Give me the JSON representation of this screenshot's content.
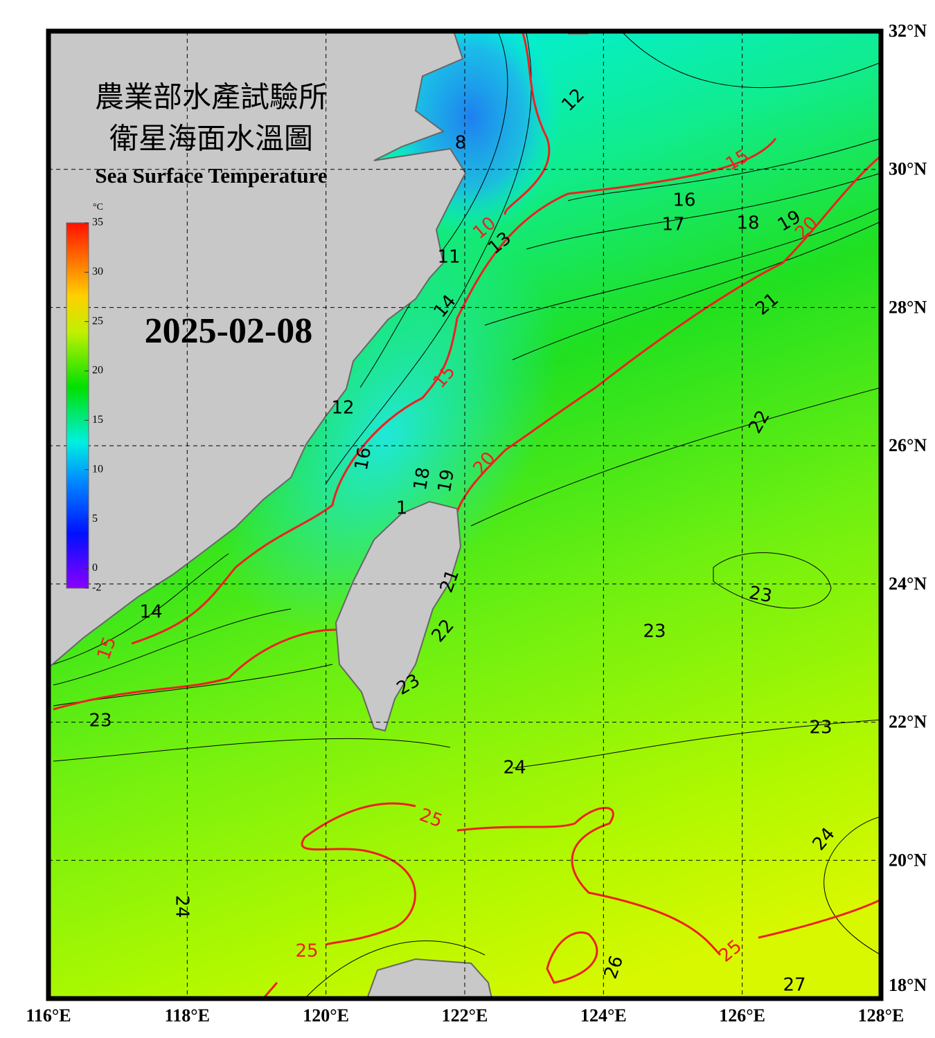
{
  "title": "農業部水產試驗所",
  "subtitle": "衛星海面水溫圖",
  "title_en": "Sea Surface Temperature",
  "date": "2025-02-08",
  "map": {
    "xlim": [
      116,
      128
    ],
    "ylim": [
      18,
      32
    ],
    "xticks": [
      {
        "value": 116,
        "label": "116°E"
      },
      {
        "value": 118,
        "label": "118°E"
      },
      {
        "value": 120,
        "label": "120°E"
      },
      {
        "value": 122,
        "label": "122°E"
      },
      {
        "value": 124,
        "label": "124°E"
      },
      {
        "value": 126,
        "label": "126°E"
      },
      {
        "value": 128,
        "label": "128°E"
      }
    ],
    "yticks": [
      {
        "value": 18,
        "label": "18°N"
      },
      {
        "value": 20,
        "label": "20°N"
      },
      {
        "value": 22,
        "label": "22°N"
      },
      {
        "value": 24,
        "label": "24°N"
      },
      {
        "value": 26,
        "label": "26°N"
      },
      {
        "value": 28,
        "label": "28°N"
      },
      {
        "value": 30,
        "label": "30°N"
      },
      {
        "value": 32,
        "label": "32°N"
      }
    ]
  },
  "colorbar": {
    "unit": "°C",
    "lim": [
      -2,
      35
    ],
    "ticks": [
      35,
      30,
      25,
      20,
      15,
      10,
      5,
      0,
      -2
    ]
  },
  "contour_labels": [
    "12",
    "8",
    "15",
    "16",
    "17",
    "18",
    "19",
    "20",
    "10",
    "13",
    "11",
    "21",
    "14",
    "15",
    "12",
    "22",
    "16",
    "18",
    "19",
    "20",
    "1",
    "21",
    "23",
    "14",
    "23",
    "22",
    "15",
    "23",
    "23",
    "23",
    "24",
    "25",
    "24",
    "24",
    "25",
    "25",
    "26",
    "27"
  ]
}
